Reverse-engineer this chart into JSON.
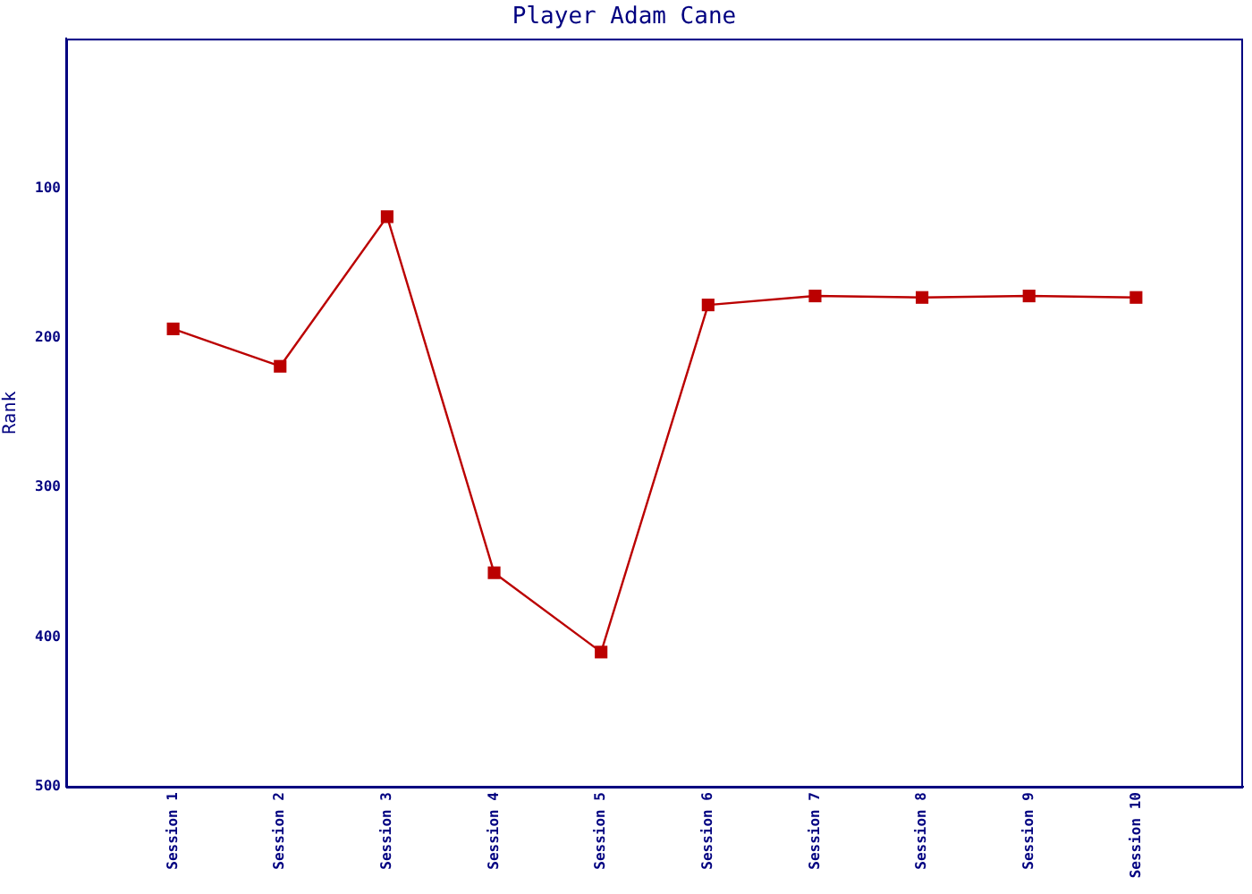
{
  "chart_data": {
    "type": "line",
    "title": "Player Adam Cane",
    "ylabel": "Rank",
    "categories": [
      "Session 1",
      "Session 2",
      "Session 3",
      "Session 4",
      "Session 5",
      "Session 6",
      "Session 7",
      "Session 8",
      "Session 9",
      "Session 10"
    ],
    "series": [
      {
        "color": "#bb0000",
        "values": [
          194,
          219,
          119,
          357,
          410,
          178,
          172,
          173,
          172,
          173
        ]
      }
    ],
    "ylim": [
      500,
      0
    ],
    "yticks": [
      100,
      200,
      300,
      400,
      500
    ],
    "grid": false,
    "legend": false,
    "marker": "square",
    "line_style": "solid"
  }
}
